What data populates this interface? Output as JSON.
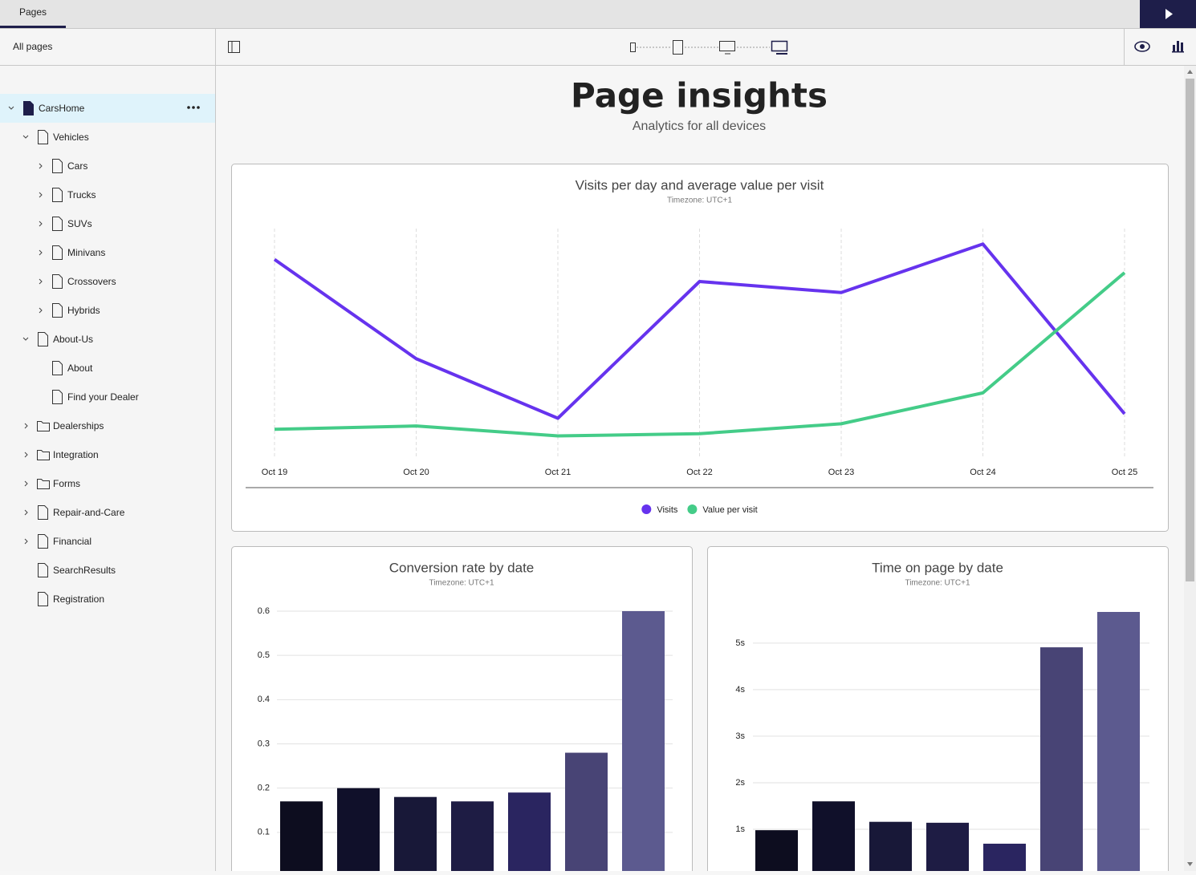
{
  "topbar": {
    "tab": "Pages"
  },
  "sidebar": {
    "header": "All pages",
    "tree": [
      {
        "label": "CarsHome",
        "icon": "page-filled",
        "open": true,
        "selected": true,
        "children": [
          {
            "label": "Vehicles",
            "icon": "page",
            "open": true,
            "children": [
              {
                "label": "Cars",
                "icon": "page",
                "open": false
              },
              {
                "label": "Trucks",
                "icon": "page",
                "open": false
              },
              {
                "label": "SUVs",
                "icon": "page",
                "open": false
              },
              {
                "label": "Minivans",
                "icon": "page",
                "open": false
              },
              {
                "label": "Crossovers",
                "icon": "page",
                "open": false
              },
              {
                "label": "Hybrids",
                "icon": "page",
                "open": false
              }
            ]
          },
          {
            "label": "About-Us",
            "icon": "page",
            "open": true,
            "children": [
              {
                "label": "About",
                "icon": "page"
              },
              {
                "label": "Find your Dealer",
                "icon": "page"
              }
            ]
          },
          {
            "label": "Dealerships",
            "icon": "folder",
            "open": false
          },
          {
            "label": "Integration",
            "icon": "folder",
            "open": false
          },
          {
            "label": "Forms",
            "icon": "folder",
            "open": false
          },
          {
            "label": "Repair-and-Care",
            "icon": "page",
            "open": false
          },
          {
            "label": "Financial",
            "icon": "page",
            "open": false
          },
          {
            "label": "SearchResults",
            "icon": "page"
          },
          {
            "label": "Registration",
            "icon": "page"
          }
        ]
      }
    ]
  },
  "header": {
    "title": "Page insights",
    "subtitle": "Analytics for all devices"
  },
  "chart_data": [
    {
      "type": "line",
      "title": "Visits per day and average value per visit",
      "subtitle": "Timezone: UTC+1",
      "categories": [
        "Oct 19",
        "Oct 20",
        "Oct 21",
        "Oct 22",
        "Oct 23",
        "Oct 24",
        "Oct 25"
      ],
      "ylim": [
        0,
        100
      ],
      "grid": true,
      "series": [
        {
          "name": "Visits",
          "color": "#6633ee",
          "values": [
            86,
            41,
            14,
            76,
            71,
            93,
            16
          ]
        },
        {
          "name": "Value per visit",
          "color": "#44cc88",
          "values": [
            9,
            10.5,
            6,
            7,
            11.5,
            25.5,
            80
          ]
        }
      ]
    },
    {
      "type": "bar",
      "title": "Conversion rate by date",
      "subtitle": "Timezone: UTC+1",
      "ylim": [
        0,
        0.6
      ],
      "yticks": [
        0.1,
        0.2,
        0.3,
        0.4,
        0.5,
        0.6
      ],
      "grid": true,
      "values": [
        0.17,
        0.2,
        0.18,
        0.17,
        0.19,
        0.28,
        0.6
      ],
      "colors": [
        "#0d0d1f",
        "#10102a",
        "#181838",
        "#1e1c44",
        "#2a2560",
        "#484475",
        "#5c5a8f"
      ]
    },
    {
      "type": "bar",
      "title": "Time on page by date",
      "subtitle": "Timezone: UTC+1",
      "ylim": [
        0,
        5.67
      ],
      "yticks": [
        {
          "value": 1,
          "label": "1s"
        },
        {
          "value": 2,
          "label": "2s"
        },
        {
          "value": 3,
          "label": "3s"
        },
        {
          "value": 4,
          "label": "4s"
        },
        {
          "value": 5,
          "label": "5s"
        }
      ],
      "grid": true,
      "values": [
        0.98,
        1.6,
        1.16,
        1.14,
        0.69,
        4.91,
        5.67
      ],
      "colors": [
        "#0d0d1f",
        "#10102a",
        "#181838",
        "#1e1c44",
        "#2a2560",
        "#484475",
        "#5c5a8f"
      ]
    }
  ]
}
